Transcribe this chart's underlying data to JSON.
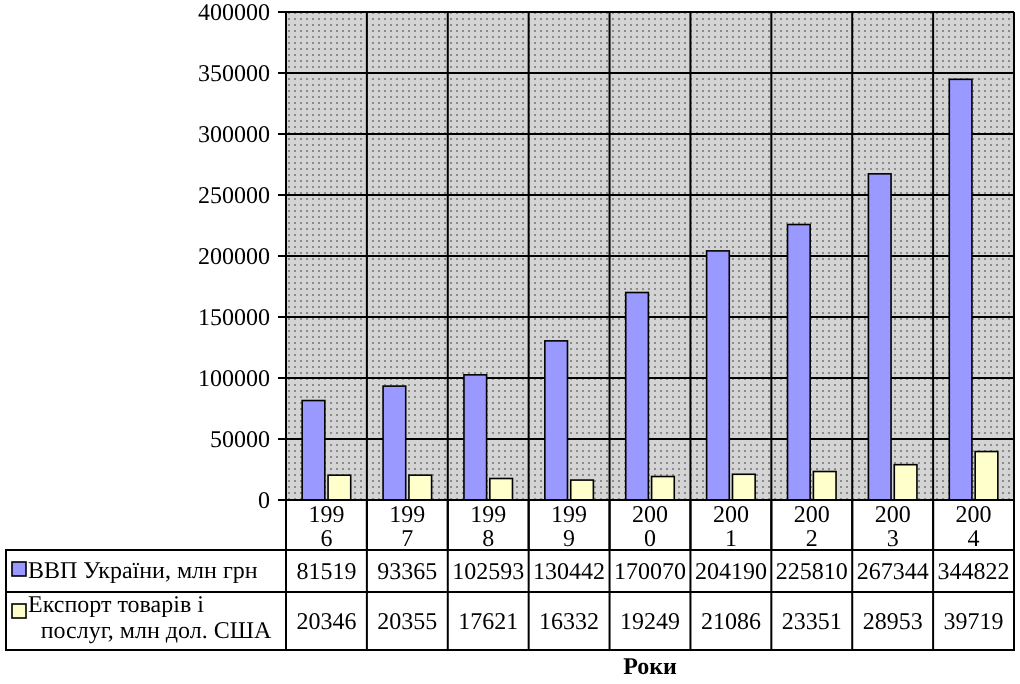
{
  "chart_data": {
    "type": "bar",
    "xlabel": "Роки",
    "categories": [
      "1996",
      "1997",
      "1998",
      "1999",
      "2000",
      "2001",
      "2002",
      "2003",
      "2004"
    ],
    "series": [
      {
        "name": "ВВП України, млн грн",
        "color": "#9999ff",
        "values": [
          81519,
          93365,
          102593,
          130442,
          170070,
          204190,
          225810,
          267344,
          344822
        ]
      },
      {
        "name": "Експорт товарів і послуг, млн  дол. США",
        "color": "#ffffcc",
        "values": [
          20346,
          20355,
          17621,
          16332,
          19249,
          21086,
          23351,
          28953,
          39719
        ]
      }
    ],
    "ylim": [
      0,
      400000
    ],
    "yticks": [
      0,
      50000,
      100000,
      150000,
      200000,
      250000,
      300000,
      350000,
      400000
    ],
    "grid": true,
    "legend": "bottom",
    "data_labels": true
  }
}
